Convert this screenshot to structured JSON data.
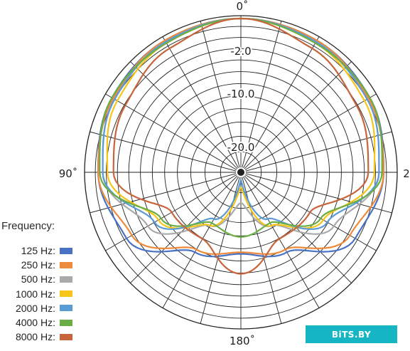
{
  "chart_data": {
    "type": "polar",
    "angle_labels": [
      "0˚",
      "90˚",
      "180˚",
      "2"
    ],
    "ring_labels": [
      "-2.0",
      "-10.0",
      "-20.0"
    ],
    "angular_gridline_step_deg": 15,
    "ring_count": 12,
    "legend_title": "Frequency:",
    "legend_position": "left",
    "series": [
      {
        "name": "125 Hz:",
        "color": "#4a72c4",
        "angle_deg": [
          0,
          30,
          60,
          90,
          120,
          150,
          180
        ],
        "level": [
          1.0,
          0.99,
          0.97,
          0.93,
          0.86,
          0.6,
          0.53
        ]
      },
      {
        "name": "250 Hz:",
        "color": "#ee8a3c",
        "angle_deg": [
          0,
          30,
          60,
          90,
          120,
          150,
          180
        ],
        "level": [
          1.0,
          0.99,
          0.96,
          0.93,
          0.82,
          0.58,
          0.52
        ]
      },
      {
        "name": "500 Hz:",
        "color": "#aaaaaa",
        "angle_deg": [
          0,
          30,
          60,
          90,
          120,
          150,
          180
        ],
        "level": [
          1.0,
          0.98,
          0.95,
          0.9,
          0.7,
          0.4,
          0.2
        ]
      },
      {
        "name": "1000 Hz:",
        "color": "#f5c518",
        "angle_deg": [
          0,
          30,
          60,
          90,
          120,
          150,
          180
        ],
        "level": [
          1.0,
          0.97,
          0.93,
          0.87,
          0.62,
          0.4,
          0.1
        ]
      },
      {
        "name": "2000 Hz:",
        "color": "#5b9bd5",
        "angle_deg": [
          0,
          30,
          60,
          90,
          120,
          150,
          180
        ],
        "level": [
          1.0,
          0.98,
          0.95,
          0.9,
          0.65,
          0.35,
          0.05
        ]
      },
      {
        "name": "4000 Hz:",
        "color": "#6aae45",
        "angle_deg": [
          0,
          30,
          60,
          90,
          120,
          150,
          180
        ],
        "level": [
          1.0,
          0.97,
          0.97,
          0.92,
          0.6,
          0.38,
          0.42
        ]
      },
      {
        "name": "8000 Hz:",
        "color": "#c8643c",
        "angle_deg": [
          0,
          30,
          60,
          90,
          120,
          150,
          180
        ],
        "level": [
          1.0,
          0.93,
          0.87,
          0.83,
          0.52,
          0.5,
          0.66
        ]
      }
    ]
  },
  "watermark": {
    "text": "BiTS.BY"
  }
}
